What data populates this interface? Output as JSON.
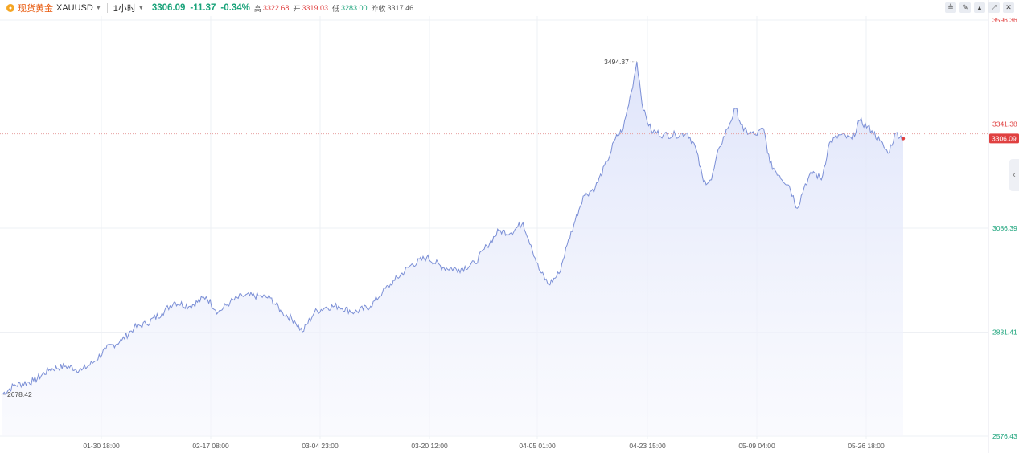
{
  "header": {
    "symbol_name": "现货黄金",
    "symbol_code": "XAUUSD",
    "interval": "1小时",
    "price": "3306.09",
    "change": "-11.37",
    "change_pct": "-0.34%",
    "high_label": "高",
    "high_value": "3322.68",
    "open_label": "开",
    "open_value": "3319.03",
    "low_label": "低",
    "low_value": "3283.00",
    "prev_close_label": "昨收",
    "prev_close_value": "3317.46"
  },
  "toolbar": {
    "icons": [
      "candlestick-icon",
      "draw-icon",
      "area-chart-icon",
      "expand-icon",
      "close-icon"
    ]
  },
  "colors": {
    "line": "#7b8fd6",
    "up": "#1aa37a",
    "down": "#e04040",
    "fill_top": "#dfe4fa"
  },
  "chart_data": {
    "type": "area",
    "y_ticks": [
      "3596.36",
      "3341.38",
      "3086.39",
      "2831.41",
      "2576.43"
    ],
    "y_tick_values": [
      3596.36,
      3341.38,
      3086.39,
      2831.41,
      2576.43
    ],
    "y_tick_colors": [
      "#e04040",
      "#e04040",
      "#1aa37a",
      "#1aa37a",
      "#1aa37a"
    ],
    "ylim": [
      2576.43,
      3596.36
    ],
    "x_ticks": [
      "01-30 18:00",
      "02-17 08:00",
      "03-04 23:00",
      "03-20 12:00",
      "04-05 01:00",
      "04-23 15:00",
      "05-09 04:00",
      "05-26 18:00"
    ],
    "last_price_label": "3306.09",
    "last_price": 3306.09,
    "reference_level": 3317.46,
    "max_label": "3494.37",
    "max_value": 3494.37,
    "min_label": "2678.42",
    "min_value": 2678.42,
    "anchors": [
      [
        0,
        2678
      ],
      [
        15,
        2700
      ],
      [
        40,
        2712
      ],
      [
        60,
        2740
      ],
      [
        80,
        2748
      ],
      [
        100,
        2738
      ],
      [
        115,
        2758
      ],
      [
        130,
        2790
      ],
      [
        150,
        2812
      ],
      [
        165,
        2842
      ],
      [
        180,
        2852
      ],
      [
        200,
        2878
      ],
      [
        215,
        2905
      ],
      [
        235,
        2895
      ],
      [
        255,
        2918
      ],
      [
        270,
        2880
      ],
      [
        285,
        2905
      ],
      [
        300,
        2920
      ],
      [
        320,
        2920
      ],
      [
        335,
        2915
      ],
      [
        350,
        2880
      ],
      [
        365,
        2860
      ],
      [
        375,
        2832
      ],
      [
        390,
        2880
      ],
      [
        405,
        2893
      ],
      [
        420,
        2895
      ],
      [
        440,
        2880
      ],
      [
        460,
        2895
      ],
      [
        475,
        2930
      ],
      [
        490,
        2958
      ],
      [
        510,
        2995
      ],
      [
        530,
        3015
      ],
      [
        550,
        2990
      ],
      [
        570,
        2985
      ],
      [
        590,
        3000
      ],
      [
        605,
        3043
      ],
      [
        620,
        3080
      ],
      [
        635,
        3075
      ],
      [
        650,
        3100
      ],
      [
        660,
        3045
      ],
      [
        670,
        2985
      ],
      [
        682,
        2948
      ],
      [
        695,
        2975
      ],
      [
        705,
        3045
      ],
      [
        715,
        3105
      ],
      [
        725,
        3165
      ],
      [
        740,
        3185
      ],
      [
        755,
        3250
      ],
      [
        765,
        3305
      ],
      [
        775,
        3330
      ],
      [
        785,
        3420
      ],
      [
        792,
        3494
      ],
      [
        800,
        3375
      ],
      [
        810,
        3325
      ],
      [
        825,
        3315
      ],
      [
        840,
        3315
      ],
      [
        855,
        3320
      ],
      [
        865,
        3285
      ],
      [
        875,
        3200
      ],
      [
        885,
        3205
      ],
      [
        895,
        3285
      ],
      [
        905,
        3330
      ],
      [
        915,
        3380
      ],
      [
        925,
        3325
      ],
      [
        940,
        3315
      ],
      [
        950,
        3330
      ],
      [
        958,
        3245
      ],
      [
        970,
        3215
      ],
      [
        982,
        3190
      ],
      [
        992,
        3135
      ],
      [
        1002,
        3195
      ],
      [
        1012,
        3225
      ],
      [
        1022,
        3205
      ],
      [
        1032,
        3295
      ],
      [
        1045,
        3315
      ],
      [
        1060,
        3305
      ],
      [
        1070,
        3350
      ],
      [
        1085,
        3325
      ],
      [
        1095,
        3300
      ],
      [
        1105,
        3270
      ],
      [
        1115,
        3320
      ],
      [
        1124,
        3306
      ]
    ]
  }
}
